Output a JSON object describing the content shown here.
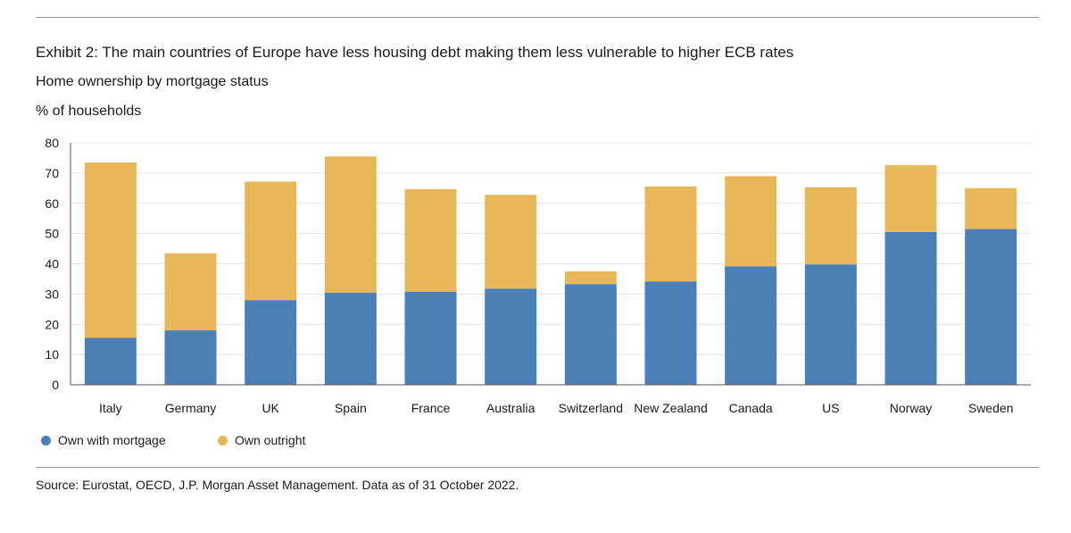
{
  "header": {
    "title": "Exhibit 2: The main countries of Europe have less housing debt making them less vulnerable to higher ECB rates",
    "subtitle": "Home ownership by mortgage status",
    "unit_label": "% of households"
  },
  "chart_data": {
    "type": "bar",
    "stacked": true,
    "title": "Home ownership by mortgage status",
    "xlabel": "",
    "ylabel": "% of households",
    "ylim": [
      0,
      80
    ],
    "yticks": [
      0,
      10,
      20,
      30,
      40,
      50,
      60,
      70,
      80
    ],
    "grid": true,
    "legend_position": "bottom-left",
    "categories": [
      "Italy",
      "Germany",
      "UK",
      "Spain",
      "France",
      "Australia",
      "Switzerland",
      "New Zealand",
      "Canada",
      "US",
      "Norway",
      "Sweden"
    ],
    "series": [
      {
        "name": "Own with mortgage",
        "color": "#4a80b5",
        "values": [
          15.5,
          18,
          28,
          30.5,
          30.8,
          31.8,
          33.3,
          34.2,
          39.2,
          39.8,
          50.5,
          51.5
        ]
      },
      {
        "name": "Own outright",
        "color": "#e8b858",
        "values": [
          58,
          25.5,
          39.2,
          45,
          33.9,
          31,
          4.2,
          31.4,
          29.8,
          25.5,
          22.1,
          13.5
        ]
      }
    ]
  },
  "legend": {
    "mortgage_label": "Own with mortgage",
    "outright_label": "Own outright",
    "mortgage_color": "#4a80b5",
    "outright_color": "#e8b858"
  },
  "footer": {
    "source": "Source: Eurostat, OECD, J.P. Morgan Asset Management. Data as of 31 October 2022."
  }
}
